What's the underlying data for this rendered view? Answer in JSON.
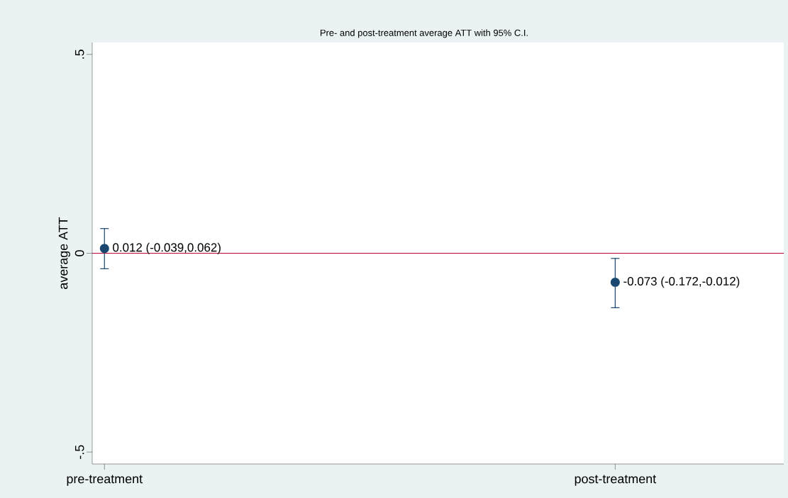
{
  "chart_data": {
    "type": "scatter",
    "title": "Pre- and post-treatment average ATT with 95% C.I.",
    "ylabel": "average ATT",
    "categories": [
      "pre-treatment",
      "post-treatment"
    ],
    "values": [
      0.012,
      -0.073
    ],
    "errors": [
      [
        -0.039,
        0.062
      ],
      [
        -0.137,
        -0.013
      ]
    ],
    "value_labels": [
      "0.012 (-0.039,0.062)",
      "-0.073 (-0.172,-0.012)"
    ],
    "color": "#1a476f",
    "marker": "circle",
    "ylim": [
      -0.53,
      0.53
    ],
    "yticks": [
      {
        "value": -0.5,
        "label": "-.5"
      },
      0,
      {
        "value": 0.5,
        "label": ".5"
      }
    ],
    "ref_lines": [
      {
        "axis": "y",
        "value": 0,
        "color": "#c10534"
      }
    ]
  }
}
